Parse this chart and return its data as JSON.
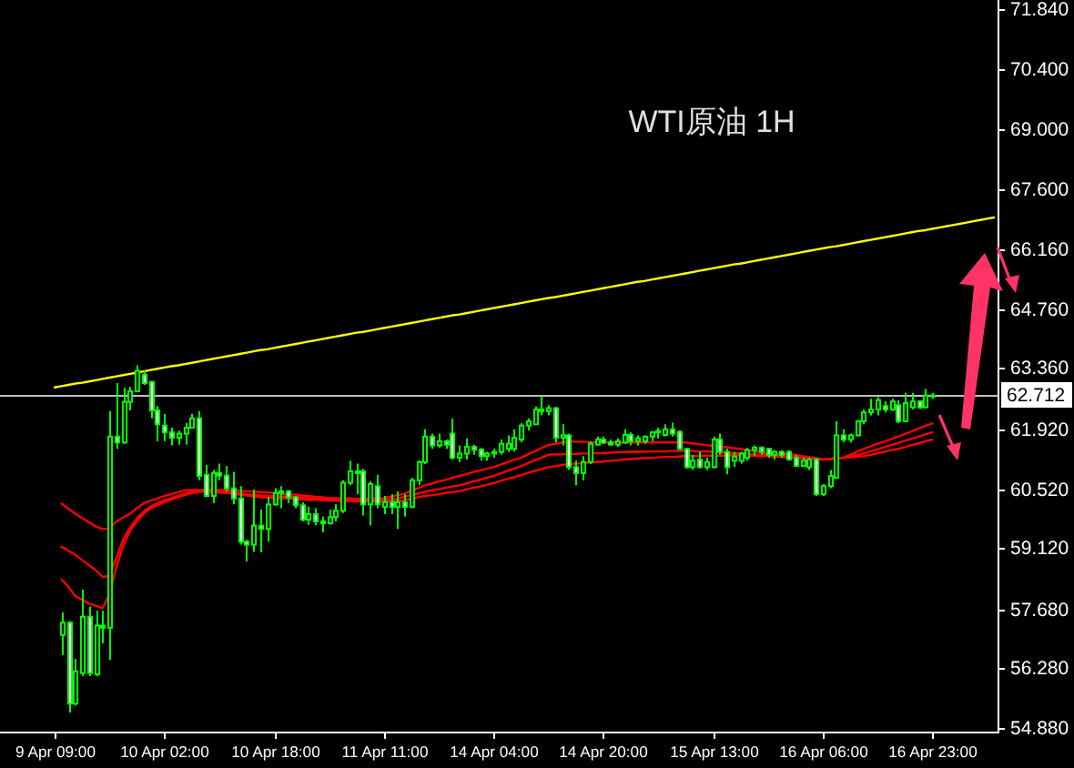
{
  "chart_data": {
    "type": "candlestick",
    "title": "WTI原油 1H",
    "categories": [
      "9 Apr 09:00",
      null,
      null,
      null,
      null,
      null,
      null,
      null,
      null,
      null,
      null,
      null,
      null,
      null,
      null,
      null,
      "10 Apr 02:00",
      null,
      null,
      null,
      null,
      null,
      null,
      null,
      null,
      null,
      null,
      null,
      null,
      null,
      null,
      null,
      "10 Apr 18:00",
      null,
      null,
      null,
      null,
      null,
      null,
      null,
      null,
      null,
      null,
      null,
      null,
      null,
      null,
      null,
      "11 Apr 11:00",
      null,
      null,
      null,
      null,
      null,
      null,
      null,
      null,
      null,
      null,
      null,
      null,
      null,
      null,
      null,
      "14 Apr 04:00",
      null,
      null,
      null,
      null,
      null,
      null,
      null,
      null,
      null,
      null,
      null,
      null,
      null,
      null,
      null,
      "14 Apr 20:00",
      null,
      null,
      null,
      null,
      null,
      null,
      null,
      null,
      null,
      null,
      null,
      null,
      null,
      null,
      null,
      "15 Apr 13:00",
      null,
      null,
      null,
      null,
      null,
      null,
      null,
      null,
      null,
      null,
      null,
      null,
      null,
      null,
      null,
      "16 Apr 06:00",
      null,
      null,
      null,
      null,
      null,
      null,
      null,
      null,
      null,
      null,
      null,
      null,
      null,
      null,
      null,
      "16 Apr 23:00",
      null,
      null,
      null,
      null,
      null,
      null,
      null,
      null,
      null
    ],
    "ylim": [
      54.79,
      72.05
    ],
    "yticks": [
      {
        "value": 71.84,
        "label": "71.840"
      },
      {
        "value": 70.4,
        "label": "70.400"
      },
      {
        "value": 69.0,
        "label": "69.000"
      },
      {
        "value": 67.6,
        "label": "67.600"
      },
      {
        "value": 66.16,
        "label": "66.160"
      },
      {
        "value": 64.76,
        "label": "64.760"
      },
      {
        "value": 63.36,
        "label": "63.360"
      },
      {
        "value": 61.92,
        "label": "61.920"
      },
      {
        "value": 60.52,
        "label": "60.520"
      },
      {
        "value": 59.12,
        "label": "59.120"
      },
      {
        "value": 57.68,
        "label": "57.680"
      },
      {
        "value": 56.28,
        "label": "56.280"
      },
      {
        "value": 54.88,
        "label": "54.880"
      }
    ],
    "ref_lines": [
      {
        "axis": "y",
        "value": 62.712,
        "label": "62.712",
        "color": "#c0c0c0"
      }
    ],
    "series": [
      {
        "color": "#00ff00",
        "colors": [
          null,
          "#000000",
          "#ffffff",
          "#000000",
          "#000000",
          "#ffffff",
          "#000000",
          "#ffffff",
          "#000000",
          "#ffffff",
          "#000000",
          "#000000",
          "#000000",
          "#ffffff",
          "#ffffff",
          "#ffffff",
          "#ffffff",
          "#ffffff",
          "#000000",
          "#000000",
          "#000000",
          "#ffffff",
          "#ffffff",
          "#000000",
          "#ffffff",
          "#ffffff",
          "#ffffff",
          "#ffffff",
          "#ffffff",
          "#000000",
          "#ffffff",
          "#000000",
          "#000000",
          "#000000",
          "#ffffff",
          "#ffffff",
          "#ffffff",
          "#000000",
          "#ffffff",
          "#ffffff",
          "#000000",
          "#000000",
          "#000000",
          "#000000",
          "#ffffff",
          "#ffffff",
          "#000000",
          "#ffffff",
          "#000000",
          "#ffffff",
          "#000000",
          "#ffffff",
          "#000000",
          "#000000",
          "#000000",
          "#ffffff",
          "#000000",
          "#ffffff",
          "#ffffff",
          "#000000",
          "#000000",
          "#ffffff",
          "#ffffff",
          "#000000",
          "#000000",
          "#000000",
          "#000000",
          "#000000",
          "#000000",
          "#000000",
          "#000000",
          "#ffffff",
          "#000000",
          "#ffffff",
          "#000000",
          "#ffffff",
          "#ffffff",
          "#000000",
          "#000000",
          "#000000",
          "#ffffff",
          "#ffffff",
          "#000000",
          "#000000",
          "#ffffff",
          "#000000",
          "#000000",
          "#000000",
          "#000000",
          "#000000",
          "#ffffff",
          "#ffffff",
          "#ffffff",
          "#000000",
          "#ffffff",
          "#000000",
          "#000000",
          "#ffffff",
          "#ffffff",
          "#000000",
          "#000000",
          "#000000",
          "#000000",
          "#ffffff",
          "#ffffff",
          "#000000",
          "#ffffff",
          "#ffffff",
          "#ffffff",
          "#000000",
          "#000000",
          "#ffffff",
          "#000000",
          "#000000",
          "#000000",
          "#ffffff",
          "#000000",
          "#000000",
          "#000000",
          "#000000",
          "#000000",
          "#ffffff",
          "#000000",
          "#ffffff",
          "#000000",
          "#000000",
          "#ffffff",
          "#000000",
          "#ffffff",
          null,
          null,
          null,
          null,
          null,
          null,
          null,
          null,
          null
        ],
        "ohlc": [
          null,
          [
            57.07,
            57.6,
            56.6,
            57.36
          ],
          [
            57.36,
            57.4,
            55.24,
            55.45
          ],
          [
            55.45,
            56.5,
            55.4,
            56.21
          ],
          [
            56.17,
            58.14,
            56.1,
            57.5
          ],
          [
            57.5,
            57.74,
            56.1,
            56.17
          ],
          [
            56.14,
            57.64,
            56.1,
            57.29
          ],
          [
            57.29,
            57.64,
            56.88,
            57.24
          ],
          [
            57.24,
            62.35,
            56.48,
            61.75
          ],
          [
            61.75,
            63.01,
            61.46,
            61.61
          ],
          [
            61.61,
            62.9,
            61.58,
            62.57
          ],
          [
            62.57,
            62.92,
            62.37,
            62.82
          ],
          [
            62.82,
            63.43,
            62.8,
            63.3
          ],
          [
            63.21,
            63.3,
            62.97,
            63.01
          ],
          [
            63.04,
            63.06,
            62.18,
            62.37
          ],
          [
            62.37,
            62.47,
            61.64,
            62.04
          ],
          [
            62.01,
            62.28,
            61.64,
            61.85
          ],
          [
            61.85,
            61.96,
            61.54,
            61.72
          ],
          [
            61.72,
            61.89,
            61.56,
            61.82
          ],
          [
            61.82,
            62.07,
            61.56,
            61.96
          ],
          [
            61.96,
            62.29,
            61.94,
            62.18
          ],
          [
            62.18,
            62.35,
            60.72,
            60.82
          ],
          [
            60.85,
            61.08,
            60.32,
            60.35
          ],
          [
            60.35,
            60.96,
            60.18,
            60.89
          ],
          [
            60.89,
            61.11,
            60.72,
            60.83
          ],
          [
            60.83,
            61.06,
            60.46,
            60.53
          ],
          [
            60.53,
            60.92,
            60.15,
            60.29
          ],
          [
            60.29,
            60.58,
            59.2,
            59.27
          ],
          [
            59.27,
            59.32,
            58.8,
            59.2
          ],
          [
            59.2,
            60.5,
            59.03,
            59.65
          ],
          [
            59.65,
            60.03,
            59.02,
            59.57
          ],
          [
            59.57,
            60.32,
            59.27,
            60.15
          ],
          [
            60.15,
            60.53,
            60.12,
            60.42
          ],
          [
            60.42,
            60.58,
            60.06,
            60.46
          ],
          [
            60.46,
            60.49,
            60.18,
            60.32
          ],
          [
            60.32,
            60.35,
            60.06,
            60.13
          ],
          [
            60.13,
            60.2,
            59.75,
            59.79
          ],
          [
            59.79,
            60.1,
            59.67,
            59.92
          ],
          [
            59.92,
            60.06,
            59.66,
            59.75
          ],
          [
            59.75,
            59.86,
            59.49,
            59.7
          ],
          [
            59.7,
            60.03,
            59.68,
            59.85
          ],
          [
            59.85,
            60.15,
            59.75,
            60.0
          ],
          [
            60.0,
            60.72,
            59.95,
            60.66
          ],
          [
            60.66,
            61.18,
            60.6,
            60.93
          ],
          [
            60.93,
            61.11,
            60.39,
            60.89
          ],
          [
            60.93,
            60.99,
            59.89,
            60.15
          ],
          [
            60.15,
            60.7,
            59.65,
            60.63
          ],
          [
            60.58,
            60.85,
            60.06,
            60.15
          ],
          [
            60.09,
            60.35,
            59.92,
            60.2
          ],
          [
            60.2,
            60.39,
            59.92,
            60.09
          ],
          [
            60.09,
            60.46,
            59.57,
            60.2
          ],
          [
            60.2,
            60.39,
            59.86,
            60.09
          ],
          [
            60.09,
            60.78,
            60.06,
            60.72
          ],
          [
            60.72,
            61.18,
            60.6,
            61.15
          ],
          [
            61.15,
            61.92,
            61.1,
            61.75
          ],
          [
            61.75,
            61.82,
            61.46,
            61.54
          ],
          [
            61.54,
            61.82,
            61.49,
            61.64
          ],
          [
            61.64,
            61.68,
            61.46,
            61.56
          ],
          [
            61.82,
            62.18,
            61.21,
            61.25
          ],
          [
            61.25,
            61.54,
            61.15,
            61.35
          ],
          [
            61.35,
            61.71,
            61.21,
            61.51
          ],
          [
            61.51,
            61.56,
            61.32,
            61.44
          ],
          [
            61.44,
            61.49,
            61.18,
            61.29
          ],
          [
            61.29,
            61.39,
            61.18,
            61.35
          ],
          [
            61.35,
            61.46,
            61.25,
            61.39
          ],
          [
            61.39,
            61.68,
            61.32,
            61.58
          ],
          [
            61.46,
            61.78,
            61.39,
            61.58
          ],
          [
            61.46,
            61.92,
            61.39,
            61.72
          ],
          [
            61.68,
            62.07,
            61.61,
            62.01
          ],
          [
            62.01,
            62.18,
            61.89,
            62.11
          ],
          [
            62.04,
            62.46,
            62.04,
            62.39
          ],
          [
            62.39,
            62.71,
            62.25,
            62.35
          ],
          [
            62.35,
            62.49,
            62.25,
            62.42
          ],
          [
            62.42,
            62.45,
            61.61,
            61.72
          ],
          [
            61.72,
            62.04,
            61.54,
            61.78
          ],
          [
            61.78,
            61.82,
            60.96,
            61.03
          ],
          [
            61.03,
            61.18,
            60.6,
            60.89
          ],
          [
            60.89,
            61.29,
            60.72,
            61.15
          ],
          [
            61.15,
            61.64,
            61.1,
            61.58
          ],
          [
            61.56,
            61.75,
            61.54,
            61.68
          ],
          [
            61.68,
            61.75,
            61.58,
            61.61
          ],
          [
            61.61,
            61.68,
            61.54,
            61.56
          ],
          [
            61.56,
            61.71,
            61.51,
            61.64
          ],
          [
            61.61,
            61.92,
            61.58,
            61.79
          ],
          [
            61.79,
            61.85,
            61.54,
            61.64
          ],
          [
            61.64,
            61.78,
            61.54,
            61.71
          ],
          [
            61.64,
            61.78,
            61.58,
            61.75
          ],
          [
            61.75,
            61.88,
            61.64,
            61.85
          ],
          [
            61.85,
            61.96,
            61.71,
            61.88
          ],
          [
            61.79,
            62.04,
            61.75,
            61.92
          ],
          [
            61.92,
            62.08,
            61.75,
            61.82
          ],
          [
            61.86,
            61.9,
            61.43,
            61.46
          ],
          [
            61.46,
            61.49,
            61.0,
            61.03
          ],
          [
            61.03,
            61.32,
            60.96,
            61.18
          ],
          [
            61.21,
            61.39,
            61.0,
            61.03
          ],
          [
            61.03,
            61.25,
            60.96,
            61.15
          ],
          [
            61.03,
            61.75,
            61.0,
            61.68
          ],
          [
            61.68,
            61.82,
            61.32,
            61.39
          ],
          [
            61.39,
            61.46,
            60.86,
            61.03
          ],
          [
            61.18,
            61.39,
            61.03,
            61.28
          ],
          [
            61.18,
            61.39,
            61.11,
            61.35
          ],
          [
            61.25,
            61.49,
            61.18,
            61.43
          ],
          [
            61.43,
            61.54,
            61.29,
            61.49
          ],
          [
            61.49,
            61.52,
            61.32,
            61.39
          ],
          [
            61.46,
            61.49,
            61.25,
            61.32
          ],
          [
            61.32,
            61.43,
            61.21,
            61.39
          ],
          [
            61.39,
            61.43,
            61.25,
            61.32
          ],
          [
            61.39,
            61.43,
            61.18,
            61.21
          ],
          [
            61.25,
            61.32,
            61.03,
            61.06
          ],
          [
            61.06,
            61.25,
            61.03,
            61.18
          ],
          [
            61.03,
            61.25,
            60.96,
            61.21
          ],
          [
            61.21,
            61.25,
            60.35,
            60.39
          ],
          [
            60.39,
            60.63,
            60.35,
            60.58
          ],
          [
            60.58,
            60.96,
            60.53,
            60.82
          ],
          [
            60.78,
            62.11,
            60.75,
            61.78
          ],
          [
            61.78,
            61.92,
            61.61,
            61.68
          ],
          [
            61.68,
            61.82,
            61.61,
            61.78
          ],
          [
            61.78,
            62.14,
            61.75,
            62.11
          ],
          [
            62.11,
            62.39,
            62.04,
            62.32
          ],
          [
            62.32,
            62.64,
            62.25,
            62.39
          ],
          [
            62.39,
            62.68,
            62.25,
            62.61
          ],
          [
            62.47,
            62.58,
            62.32,
            62.39
          ],
          [
            62.39,
            62.64,
            62.35,
            62.58
          ],
          [
            62.49,
            62.61,
            62.06,
            62.11
          ],
          [
            62.11,
            62.78,
            62.11,
            62.54
          ],
          [
            62.44,
            62.78,
            62.39,
            62.58
          ],
          [
            62.58,
            62.61,
            62.4,
            62.44
          ],
          [
            62.44,
            62.87,
            62.42,
            62.72
          ],
          [
            62.72,
            62.78,
            62.64,
            62.71
          ],
          null,
          null,
          null,
          null,
          null,
          null,
          null,
          null,
          null
        ]
      },
      {
        "type": "line",
        "color": "#ff0000",
        "values": [
          null,
          60.17,
          60.05,
          59.93,
          59.83,
          59.73,
          59.63,
          59.57,
          59.58,
          59.75,
          59.84,
          59.93,
          60.06,
          60.18,
          60.24,
          60.29,
          60.35,
          60.39,
          60.44,
          60.48,
          60.49,
          60.49,
          60.5,
          60.5,
          60.49,
          60.49,
          60.48,
          60.47,
          60.46,
          60.45,
          60.44,
          60.43,
          60.42,
          60.4,
          60.39,
          60.38,
          60.36,
          60.35,
          60.33,
          60.32,
          60.3,
          60.3,
          60.29,
          60.29,
          60.28,
          60.28,
          60.29,
          60.29,
          60.3,
          60.33,
          60.37,
          60.4,
          60.47,
          60.53,
          60.6,
          60.64,
          60.69,
          60.73,
          60.78,
          60.82,
          60.86,
          60.91,
          60.95,
          60.99,
          61.03,
          61.09,
          61.14,
          61.2,
          61.25,
          61.33,
          61.4,
          61.48,
          61.55,
          61.58,
          61.61,
          61.64,
          61.63,
          61.63,
          61.62,
          61.61,
          61.61,
          61.61,
          61.61,
          61.61,
          61.61,
          61.61,
          61.61,
          61.61,
          61.61,
          61.61,
          61.61,
          61.61,
          61.61,
          61.59,
          61.57,
          61.55,
          61.53,
          61.51,
          61.5,
          61.48,
          61.46,
          61.43,
          61.41,
          61.38,
          61.35,
          61.34,
          61.34,
          61.33,
          61.32,
          61.29,
          61.27,
          61.24,
          61.21,
          61.22,
          61.24,
          61.25,
          61.32,
          61.39,
          61.46,
          61.52,
          61.58,
          61.63,
          61.69,
          61.75,
          61.81,
          61.87,
          61.94,
          62.0,
          62.06,
          null,
          null,
          null,
          null,
          null,
          null,
          null,
          null,
          null
        ]
      },
      {
        "type": "line",
        "color": "#ff0000",
        "values": [
          null,
          59.15,
          59.06,
          58.96,
          58.84,
          58.72,
          58.6,
          58.44,
          58.46,
          58.89,
          59.32,
          59.6,
          59.82,
          59.99,
          60.1,
          60.18,
          60.25,
          60.3,
          60.35,
          60.4,
          60.45,
          60.47,
          60.48,
          60.47,
          60.45,
          60.44,
          60.42,
          60.41,
          60.39,
          60.38,
          60.36,
          60.35,
          60.34,
          60.34,
          60.33,
          60.32,
          60.31,
          60.3,
          60.29,
          60.28,
          60.27,
          60.27,
          60.26,
          60.26,
          60.25,
          60.25,
          60.26,
          60.26,
          60.27,
          60.27,
          60.28,
          60.33,
          60.37,
          60.41,
          60.45,
          60.48,
          60.51,
          60.54,
          60.57,
          60.6,
          60.64,
          60.69,
          60.73,
          60.78,
          60.82,
          60.88,
          60.94,
          60.99,
          61.05,
          61.12,
          61.19,
          61.25,
          61.32,
          61.33,
          61.33,
          61.34,
          61.34,
          61.35,
          61.35,
          61.36,
          61.36,
          61.37,
          61.38,
          61.38,
          61.39,
          61.39,
          61.39,
          61.4,
          61.4,
          61.4,
          61.41,
          61.41,
          61.42,
          61.41,
          61.4,
          61.4,
          61.39,
          61.38,
          61.37,
          61.36,
          61.35,
          61.34,
          61.33,
          61.32,
          61.31,
          61.3,
          61.29,
          61.28,
          61.27,
          61.26,
          61.24,
          61.23,
          61.21,
          61.22,
          61.24,
          61.25,
          61.28,
          61.32,
          61.35,
          61.4,
          61.45,
          61.5,
          61.55,
          61.6,
          61.65,
          61.7,
          61.75,
          61.8,
          61.85,
          null,
          null,
          null,
          null,
          null,
          null,
          null,
          null,
          null
        ]
      },
      {
        "type": "line",
        "color": "#ff0000",
        "values": [
          null,
          58.38,
          58.21,
          57.99,
          57.9,
          57.81,
          57.76,
          57.7,
          58.03,
          58.67,
          59.17,
          59.53,
          59.75,
          59.93,
          60.06,
          60.13,
          60.2,
          60.26,
          60.32,
          60.37,
          60.42,
          60.44,
          60.46,
          60.45,
          60.43,
          60.42,
          60.4,
          60.38,
          60.36,
          60.34,
          60.32,
          60.31,
          60.3,
          60.3,
          60.29,
          60.28,
          60.27,
          60.26,
          60.26,
          60.25,
          60.24,
          60.24,
          60.23,
          60.23,
          60.22,
          60.22,
          60.22,
          60.22,
          60.22,
          60.22,
          60.22,
          60.25,
          60.28,
          60.32,
          60.35,
          60.37,
          60.39,
          60.42,
          60.44,
          60.46,
          60.5,
          60.54,
          60.57,
          60.61,
          60.65,
          60.7,
          60.75,
          60.79,
          60.84,
          60.89,
          60.94,
          60.98,
          61.03,
          61.05,
          61.08,
          61.1,
          61.11,
          61.12,
          61.14,
          61.15,
          61.16,
          61.18,
          61.19,
          61.21,
          61.22,
          61.23,
          61.24,
          61.25,
          61.26,
          61.27,
          61.27,
          61.28,
          61.29,
          61.29,
          61.29,
          61.3,
          61.3,
          61.3,
          61.3,
          61.31,
          61.31,
          61.3,
          61.3,
          61.29,
          61.29,
          61.28,
          61.27,
          61.26,
          61.25,
          61.24,
          61.23,
          61.22,
          61.21,
          61.22,
          61.24,
          61.25,
          61.26,
          61.28,
          61.29,
          61.32,
          61.36,
          61.39,
          61.43,
          61.46,
          61.5,
          61.55,
          61.59,
          61.64,
          61.68,
          null,
          null,
          null,
          null,
          null,
          null,
          null,
          null,
          null
        ]
      },
      {
        "type": "line",
        "color": "#ffff00",
        "values": [
          62.91,
          62.94,
          62.97,
          63.0,
          63.02,
          63.05,
          63.08,
          63.11,
          63.14,
          63.17,
          63.2,
          63.23,
          63.26,
          63.29,
          63.32,
          63.35,
          63.38,
          63.41,
          63.43,
          63.46,
          63.49,
          63.52,
          63.55,
          63.58,
          63.61,
          63.64,
          63.67,
          63.7,
          63.73,
          63.76,
          63.79,
          63.81,
          63.84,
          63.87,
          63.9,
          63.93,
          63.96,
          63.99,
          64.02,
          64.05,
          64.08,
          64.11,
          64.14,
          64.17,
          64.2,
          64.22,
          64.25,
          64.28,
          64.31,
          64.34,
          64.37,
          64.4,
          64.43,
          64.46,
          64.49,
          64.52,
          64.55,
          64.58,
          64.61,
          64.63,
          64.66,
          64.69,
          64.72,
          64.75,
          64.78,
          64.81,
          64.84,
          64.87,
          64.9,
          64.93,
          64.96,
          64.99,
          65.02,
          65.04,
          65.07,
          65.1,
          65.13,
          65.16,
          65.19,
          65.22,
          65.25,
          65.28,
          65.31,
          65.34,
          65.37,
          65.4,
          65.42,
          65.45,
          65.48,
          65.51,
          65.54,
          65.57,
          65.6,
          65.63,
          65.66,
          65.69,
          65.72,
          65.75,
          65.78,
          65.81,
          65.83,
          65.86,
          65.89,
          65.92,
          65.95,
          65.98,
          66.01,
          66.04,
          66.07,
          66.1,
          66.13,
          66.16,
          66.19,
          66.22,
          66.24,
          66.27,
          66.3,
          66.33,
          66.36,
          66.39,
          66.42,
          66.45,
          66.48,
          66.51,
          66.54,
          66.57,
          66.6,
          66.62,
          66.65,
          66.68,
          66.71,
          66.74,
          66.77,
          66.8,
          66.83,
          66.86,
          66.89,
          66.92
        ]
      }
    ]
  }
}
